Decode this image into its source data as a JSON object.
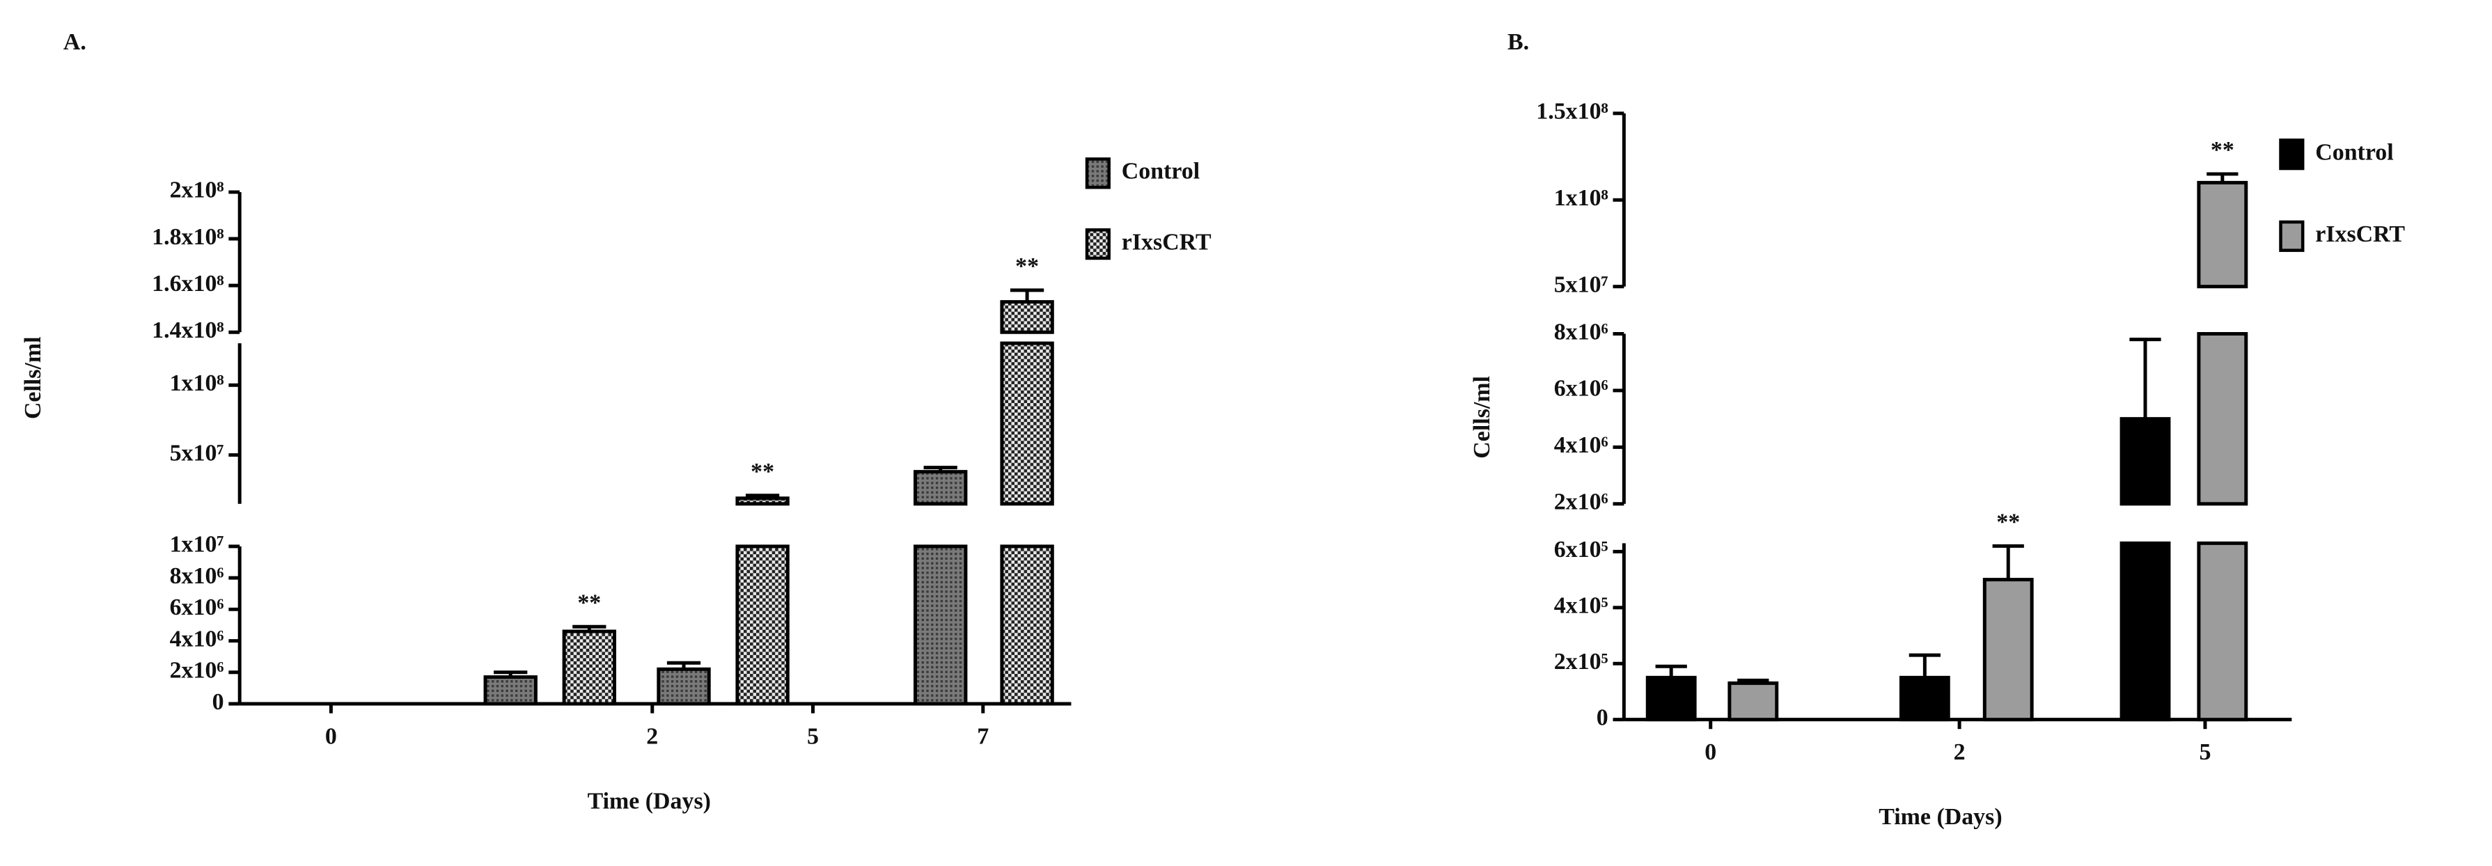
{
  "chart_data": [
    {
      "type": "bar",
      "panel_label": "A.",
      "ylabel": "Cells/ml",
      "xlabel": "Time (Days)",
      "categories": [
        "0",
        "2",
        "5",
        "7"
      ],
      "y_segments": [
        {
          "ylim": [
            0,
            10000000
          ],
          "yticks": [
            0,
            {
              "value": 2000000,
              "label": "2x10⁶"
            },
            {
              "value": 4000000,
              "label": "4x10⁶"
            },
            {
              "value": 6000000,
              "label": "6x10⁶"
            },
            {
              "value": 8000000,
              "label": "8x10⁶"
            },
            {
              "value": 10000000,
              "label": "1x10⁷"
            }
          ]
        },
        {
          "ylim": [
            15000000,
            130000000
          ],
          "yticks": [
            {
              "value": 50000000,
              "label": "5x10⁷"
            },
            {
              "value": 100000000,
              "label": "1x10⁸"
            }
          ]
        },
        {
          "ylim": [
            140000000,
            200000000
          ],
          "yticks": [
            {
              "value": 140000000,
              "label": "1.4x10⁸"
            },
            {
              "value": 160000000,
              "label": "1.6x10⁸"
            },
            {
              "value": 180000000,
              "label": "1.8x10⁸"
            },
            {
              "value": 200000000,
              "label": "2x10⁸"
            }
          ]
        }
      ],
      "series": [
        {
          "name": "Control",
          "color": "#5a5a5a",
          "pattern": "dense",
          "values": [
            null,
            1700000,
            2200000,
            38000000
          ],
          "errors": [
            null,
            300000,
            400000,
            3000000
          ]
        },
        {
          "name": "rIxsCRT",
          "color": "#9a9a9a",
          "pattern": "checker",
          "values": [
            null,
            4600000,
            19000000,
            153000000
          ],
          "errors": [
            null,
            300000,
            2000000,
            5000000
          ]
        }
      ],
      "annotations": [
        {
          "text": "**",
          "series": 1,
          "category": 1
        },
        {
          "text": "**",
          "series": 1,
          "category": 2
        },
        {
          "text": "**",
          "series": 1,
          "category": 3
        }
      ]
    },
    {
      "type": "bar",
      "panel_label": "B.",
      "ylabel": "Cells/ml",
      "xlabel": "Time (Days)",
      "categories": [
        "0",
        "2",
        "5"
      ],
      "y_segments": [
        {
          "ylim": [
            0,
            630000
          ],
          "yticks": [
            0,
            {
              "value": 200000,
              "label": "2x10⁵"
            },
            {
              "value": 400000,
              "label": "4x10⁵"
            },
            {
              "value": 600000,
              "label": "6x10⁵"
            }
          ]
        },
        {
          "ylim": [
            2000000,
            8000000
          ],
          "yticks": [
            {
              "value": 2000000,
              "label": "2x10⁶"
            },
            {
              "value": 4000000,
              "label": "4x10⁶"
            },
            {
              "value": 6000000,
              "label": "6x10⁶"
            },
            {
              "value": 8000000,
              "label": "8x10⁶"
            }
          ]
        },
        {
          "ylim": [
            50000000,
            150000000
          ],
          "yticks": [
            {
              "value": 50000000,
              "label": "5x10⁷"
            },
            {
              "value": 100000000,
              "label": "1x10⁸"
            },
            {
              "value": 150000000,
              "label": "1.5x10⁸"
            }
          ]
        }
      ],
      "series": [
        {
          "name": "Control",
          "color": "#000000",
          "pattern": "solid",
          "values": [
            150000,
            150000,
            5000000
          ],
          "errors": [
            40000,
            80000,
            2800000
          ]
        },
        {
          "name": "rIxsCRT",
          "color": "#9c9c9c",
          "pattern": "solid",
          "values": [
            130000,
            500000,
            110000000
          ],
          "errors": [
            10000,
            120000,
            5000000
          ]
        }
      ],
      "annotations": [
        {
          "text": "**",
          "series": 1,
          "category": 1
        },
        {
          "text": "**",
          "series": 1,
          "category": 2
        }
      ]
    }
  ]
}
